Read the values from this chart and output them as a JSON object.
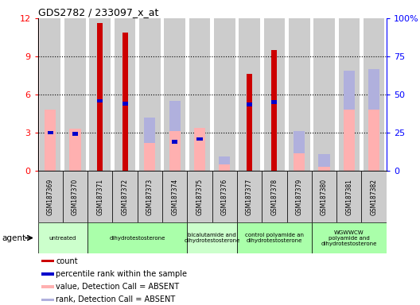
{
  "title": "GDS2782 / 233097_x_at",
  "samples": [
    "GSM187369",
    "GSM187370",
    "GSM187371",
    "GSM187372",
    "GSM187373",
    "GSM187374",
    "GSM187375",
    "GSM187376",
    "GSM187377",
    "GSM187378",
    "GSM187379",
    "GSM187380",
    "GSM187381",
    "GSM187382"
  ],
  "count": [
    0,
    0,
    11.6,
    10.9,
    0,
    0,
    0,
    0,
    7.6,
    9.5,
    0,
    0,
    0,
    0
  ],
  "percentile_rank_scaled": [
    3.0,
    2.9,
    5.5,
    5.3,
    0,
    2.3,
    2.5,
    0,
    5.2,
    5.4,
    0,
    0,
    0,
    0
  ],
  "value_absent": [
    4.8,
    3.3,
    0,
    0,
    2.2,
    3.1,
    3.4,
    0.5,
    0,
    0,
    1.4,
    0.3,
    4.8,
    4.8
  ],
  "rank_absent": [
    0,
    0,
    0,
    0,
    2.0,
    2.4,
    0,
    0.6,
    0,
    0,
    1.7,
    1.0,
    3.1,
    3.2
  ],
  "groups": [
    {
      "label": "untreated",
      "samples": [
        0,
        1
      ],
      "color": "#ccffcc"
    },
    {
      "label": "dihydrotestosterone",
      "samples": [
        2,
        3,
        4,
        5
      ],
      "color": "#aaffaa"
    },
    {
      "label": "bicalutamide and\ndihydrotestosterone",
      "samples": [
        6,
        7
      ],
      "color": "#ccffcc"
    },
    {
      "label": "control polyamide an\ndihydrotestosterone",
      "samples": [
        8,
        9,
        10
      ],
      "color": "#aaffaa"
    },
    {
      "label": "WGWWCW\npolyamide and\ndihydrotestosterone",
      "samples": [
        11,
        12,
        13
      ],
      "color": "#aaffaa"
    }
  ],
  "ylim_left": [
    0,
    12
  ],
  "ylim_right": [
    0,
    100
  ],
  "yticks_left": [
    0,
    3,
    6,
    9,
    12
  ],
  "yticks_right": [
    0,
    25,
    50,
    75,
    100
  ],
  "yticklabels_right": [
    "0",
    "25",
    "50",
    "75",
    "100%"
  ],
  "color_count": "#cc0000",
  "color_rank": "#0000cc",
  "color_value_absent": "#ffb0b0",
  "color_rank_absent": "#b0b0dd",
  "bg_col": "#cccccc",
  "legend_items": [
    [
      "#cc0000",
      "count"
    ],
    [
      "#0000cc",
      "percentile rank within the sample"
    ],
    [
      "#ffb0b0",
      "value, Detection Call = ABSENT"
    ],
    [
      "#b0b0dd",
      "rank, Detection Call = ABSENT"
    ]
  ]
}
